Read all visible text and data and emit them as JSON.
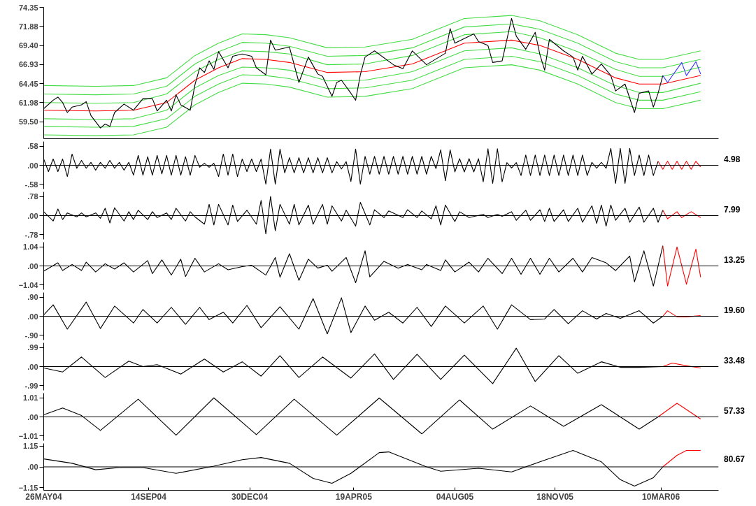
{
  "chart_data": [
    {
      "type": "line",
      "xlim": [
        "2004-05-26",
        "2006-05-10"
      ],
      "ylim": [
        57.3,
        74.35
      ],
      "yticks": [
        74.35,
        71.88,
        {
          "value": 69.4,
          "label": "69.40"
        },
        66.93,
        64.45,
        61.98,
        {
          "value": 59.5,
          "label": "59.50"
        }
      ],
      "tick_labels": "y",
      "series": [
        {
          "color": "#44dd44",
          "x": [
            "2004-05-26",
            "2004-07-20",
            "2004-08-29",
            "2004-10-03",
            "2004-11-02",
            "2004-11-27",
            "2004-12-22",
            "2005-01-16",
            "2005-02-10",
            "2005-03-22",
            "2005-05-01",
            "2005-06-20",
            "2005-08-14",
            "2005-10-03",
            "2005-11-02",
            "2005-12-12",
            "2006-01-21",
            "2006-02-15",
            "2006-03-12",
            "2006-04-21"
          ],
          "values": [
            64.2,
            64.1,
            64.2,
            65.2,
            68.1,
            69.7,
            70.9,
            70.8,
            70.4,
            69.1,
            69.2,
            70.2,
            72.9,
            73.3,
            72.6,
            70.8,
            68.4,
            67.6,
            67.6,
            68.7
          ]
        },
        {
          "color": "#44dd44",
          "x": [
            "2004-05-26",
            "2004-07-20",
            "2004-08-29",
            "2004-10-03",
            "2004-11-02",
            "2004-11-27",
            "2004-12-22",
            "2005-01-16",
            "2005-02-10",
            "2005-03-22",
            "2005-05-01",
            "2005-06-20",
            "2005-08-14",
            "2005-10-03",
            "2005-11-02",
            "2005-12-12",
            "2006-01-21",
            "2006-02-15",
            "2006-03-12",
            "2006-04-21"
          ],
          "values": [
            63.1,
            63.0,
            63.1,
            64.1,
            67.0,
            68.6,
            69.8,
            69.7,
            69.3,
            68.0,
            68.1,
            69.1,
            71.8,
            72.2,
            71.5,
            69.7,
            67.3,
            66.5,
            66.5,
            67.6
          ]
        },
        {
          "color": "#44dd44",
          "x": [
            "2004-05-26",
            "2004-07-20",
            "2004-08-29",
            "2004-10-03",
            "2004-11-02",
            "2004-11-27",
            "2004-12-22",
            "2005-01-16",
            "2005-02-10",
            "2005-03-22",
            "2005-05-01",
            "2005-06-20",
            "2005-08-14",
            "2005-10-03",
            "2005-11-02",
            "2005-12-12",
            "2006-01-21",
            "2006-02-15",
            "2006-03-12",
            "2006-04-21"
          ],
          "values": [
            62.0,
            61.9,
            62.0,
            63.1,
            66.0,
            67.6,
            68.7,
            68.6,
            68.3,
            66.9,
            67.0,
            68.1,
            70.8,
            71.2,
            70.4,
            68.6,
            66.3,
            65.4,
            65.4,
            66.6
          ]
        },
        {
          "color": "#44dd44",
          "x": [
            "2004-05-26",
            "2004-07-20",
            "2004-08-29",
            "2004-10-03",
            "2004-11-02",
            "2004-11-27",
            "2004-12-22",
            "2005-01-16",
            "2005-02-10",
            "2005-03-22",
            "2005-05-01",
            "2005-06-20",
            "2005-08-14",
            "2005-10-03",
            "2005-11-02",
            "2005-12-12",
            "2006-01-21",
            "2006-02-15",
            "2006-03-12",
            "2006-04-21"
          ],
          "values": [
            59.9,
            59.8,
            59.9,
            61.0,
            63.9,
            65.5,
            66.6,
            66.5,
            66.2,
            64.8,
            64.9,
            66.0,
            68.7,
            69.1,
            68.3,
            66.5,
            64.2,
            63.3,
            63.3,
            64.5
          ]
        },
        {
          "color": "#44dd44",
          "x": [
            "2004-05-26",
            "2004-07-20",
            "2004-08-29",
            "2004-10-03",
            "2004-11-02",
            "2004-11-27",
            "2004-12-22",
            "2005-01-16",
            "2005-02-10",
            "2005-03-22",
            "2005-05-01",
            "2005-06-20",
            "2005-08-14",
            "2005-10-03",
            "2005-11-02",
            "2005-12-12",
            "2006-01-21",
            "2006-02-15",
            "2006-03-12",
            "2006-04-21"
          ],
          "values": [
            58.9,
            58.8,
            58.9,
            59.9,
            62.8,
            64.4,
            65.6,
            65.5,
            65.1,
            63.8,
            63.9,
            64.9,
            67.6,
            68.0,
            67.3,
            65.5,
            63.1,
            62.3,
            62.3,
            63.4
          ]
        },
        {
          "color": "#44dd44",
          "x": [
            "2004-05-26",
            "2004-07-20",
            "2004-08-29",
            "2004-10-03",
            "2004-11-02",
            "2004-11-27",
            "2004-12-22",
            "2005-01-16",
            "2005-02-10",
            "2005-03-22",
            "2005-05-01",
            "2005-06-20",
            "2005-08-14",
            "2005-10-03",
            "2005-11-02",
            "2005-12-12",
            "2006-01-21",
            "2006-02-15",
            "2006-03-12",
            "2006-04-21"
          ],
          "values": [
            57.8,
            57.7,
            57.8,
            58.8,
            61.7,
            63.3,
            64.5,
            64.4,
            64.0,
            62.7,
            62.8,
            63.8,
            66.5,
            66.9,
            66.2,
            64.4,
            62.0,
            61.2,
            61.2,
            62.3
          ]
        },
        {
          "color": "#ff0000",
          "x": [
            "2004-05-26",
            "2004-07-20",
            "2004-08-29",
            "2004-10-03",
            "2004-11-02",
            "2004-11-27",
            "2004-12-22",
            "2005-01-16",
            "2005-02-10",
            "2005-03-22",
            "2005-05-01",
            "2005-06-20",
            "2005-08-14",
            "2005-10-03",
            "2005-11-02",
            "2005-12-12",
            "2006-01-21",
            "2006-02-15",
            "2006-03-12",
            "2006-04-21"
          ],
          "values": [
            61.0,
            60.9,
            61.0,
            62.0,
            64.9,
            66.5,
            67.7,
            67.6,
            67.2,
            65.9,
            66.0,
            67.0,
            69.7,
            70.1,
            69.4,
            67.6,
            65.2,
            64.4,
            64.4,
            65.5
          ]
        },
        {
          "color": "#000000",
          "x": [
            "2004-05-26",
            "2004-06-05",
            "2004-06-10",
            "2004-06-15",
            "2004-06-20",
            "2004-06-25",
            "2004-07-05",
            "2004-07-10",
            "2004-07-15",
            "2004-07-25",
            "2004-07-30",
            "2004-08-04",
            "2004-08-09",
            "2004-08-19",
            "2004-08-29",
            "2004-09-08",
            "2004-09-18",
            "2004-09-23",
            "2004-10-03",
            "2004-10-08",
            "2004-10-13",
            "2004-10-18",
            "2004-10-28",
            "2004-11-02",
            "2004-11-07",
            "2004-11-12",
            "2004-11-17",
            "2004-11-22",
            "2004-11-27",
            "2004-12-07",
            "2004-12-12",
            "2004-12-22",
            "2005-01-01",
            "2005-01-06",
            "2005-01-16",
            "2005-01-21",
            "2005-01-26",
            "2005-02-10",
            "2005-02-20",
            "2005-03-02",
            "2005-03-12",
            "2005-03-17",
            "2005-03-27",
            "2005-04-01",
            "2005-04-06",
            "2005-04-16",
            "2005-04-21",
            "2005-04-26",
            "2005-05-01",
            "2005-05-11",
            "2005-05-31",
            "2005-06-10",
            "2005-06-20",
            "2005-07-05",
            "2005-07-25",
            "2005-07-30",
            "2005-08-04",
            "2005-08-24",
            "2005-08-29",
            "2005-09-08",
            "2005-09-13",
            "2005-09-23",
            "2005-10-03",
            "2005-10-08",
            "2005-10-18",
            "2005-10-28",
            "2005-11-02",
            "2005-11-07",
            "2005-11-12",
            "2005-11-27",
            "2005-12-07",
            "2005-12-12",
            "2005-12-17",
            "2005-12-27",
            "2006-01-06",
            "2006-01-16",
            "2006-01-21",
            "2006-01-31",
            "2006-02-10",
            "2006-02-15",
            "2006-02-25",
            "2006-03-02",
            "2006-03-07",
            "2006-03-12"
          ],
          "values": [
            61.2,
            62.3,
            62.7,
            62.0,
            60.7,
            61.4,
            61.7,
            62.1,
            60.3,
            58.7,
            59.2,
            58.9,
            60.7,
            61.8,
            61.0,
            62.5,
            62.5,
            60.9,
            62.3,
            60.9,
            63.0,
            61.7,
            61.0,
            64.3,
            66.5,
            65.9,
            67.4,
            66.3,
            68.6,
            66.5,
            68.0,
            68.3,
            68.0,
            66.5,
            65.6,
            70.1,
            68.8,
            69.2,
            64.6,
            67.9,
            65.7,
            65.4,
            62.8,
            64.6,
            64.9,
            63.2,
            62.3,
            65.6,
            67.9,
            68.7,
            66.9,
            66.4,
            68.7,
            66.9,
            68.4,
            71.6,
            69.7,
            70.9,
            69.9,
            69.4,
            67.2,
            67.4,
            72.9,
            70.6,
            68.9,
            71.1,
            68.2,
            66.2,
            70.2,
            68.7,
            67.9,
            66.2,
            68.0,
            65.7,
            67.0,
            65.5,
            63.5,
            64.4,
            60.7,
            63.2,
            63.5,
            61.4,
            63.2,
            65.5
          ]
        },
        {
          "color": "#3333ff",
          "x": [
            "2006-03-12",
            "2006-03-17",
            "2006-04-01",
            "2006-04-06",
            "2006-04-16",
            "2006-04-21"
          ],
          "values": [
            65.5,
            64.6,
            67.2,
            65.5,
            67.3,
            65.7
          ]
        }
      ]
    },
    {
      "type": "line",
      "xlim": [
        "2004-05-26",
        "2006-05-10"
      ],
      "ylim": [
        -0.72,
        0.72
      ],
      "yticks": [
        {
          "value": 0.58,
          "label": ".58"
        },
        {
          "value": 0,
          "label": ".00"
        },
        {
          "value": -0.58,
          "label": "-.58"
        }
      ],
      "tick_labels": "y",
      "annotations": [
        "4.98"
      ],
      "ref_lines": [
        {
          "axis": "y",
          "value": 0,
          "color": "#000000"
        }
      ],
      "series": [
        {
          "color": "#000000",
          "x": [
            "2004-05-26",
            "2004-05-31",
            "2004-06-05",
            "2004-06-10",
            "2004-06-15",
            "2004-06-20",
            "2004-06-25",
            "2004-06-30",
            "2004-07-05",
            "2004-07-10",
            "2004-07-15",
            "2004-07-20",
            "2004-07-25",
            "2004-07-30",
            "2004-08-04",
            "2004-08-09",
            "2004-08-14",
            "2004-08-19",
            "2004-08-24",
            "2004-08-29",
            "2004-09-03",
            "2004-09-08",
            "2004-09-13",
            "2004-09-18",
            "2004-09-23",
            "2004-09-28",
            "2004-10-03",
            "2004-10-08",
            "2004-10-13",
            "2004-10-18",
            "2004-10-23",
            "2004-10-28",
            "2004-11-02",
            "2004-11-07",
            "2004-11-12",
            "2004-11-17",
            "2004-11-22",
            "2004-11-27",
            "2004-12-02",
            "2004-12-07",
            "2004-12-12",
            "2004-12-17",
            "2004-12-22",
            "2004-12-27",
            "2005-01-01",
            "2005-01-06",
            "2005-01-11",
            "2005-01-16",
            "2005-01-21",
            "2005-01-26",
            "2005-01-31",
            "2005-02-05",
            "2005-02-10",
            "2005-02-15",
            "2005-02-20",
            "2005-02-25",
            "2005-03-02",
            "2005-03-07",
            "2005-03-12",
            "2005-03-17",
            "2005-03-22",
            "2005-03-27",
            "2005-04-01",
            "2005-04-06",
            "2005-04-11",
            "2005-04-16",
            "2005-04-21",
            "2005-04-26",
            "2005-05-01",
            "2005-05-06",
            "2005-05-11",
            "2005-05-16",
            "2005-05-21",
            "2005-05-26",
            "2005-05-31",
            "2005-06-05",
            "2005-06-10",
            "2005-06-15",
            "2005-06-20",
            "2005-06-25",
            "2005-06-30",
            "2005-07-05",
            "2005-07-10",
            "2005-07-15",
            "2005-07-20",
            "2005-07-25",
            "2005-07-30",
            "2005-08-04",
            "2005-08-09",
            "2005-08-14",
            "2005-08-19",
            "2005-08-24",
            "2005-08-29",
            "2005-09-03",
            "2005-09-08",
            "2005-09-13",
            "2005-09-18",
            "2005-09-23",
            "2005-09-28",
            "2005-10-03",
            "2005-10-08",
            "2005-10-13",
            "2005-10-18",
            "2005-10-23",
            "2005-10-28",
            "2005-11-02",
            "2005-11-07",
            "2005-11-12",
            "2005-11-17",
            "2005-11-22",
            "2005-11-27",
            "2005-12-02",
            "2005-12-07",
            "2005-12-12",
            "2005-12-17",
            "2005-12-22",
            "2005-12-27",
            "2006-01-01",
            "2006-01-06",
            "2006-01-11",
            "2006-01-16",
            "2006-01-21",
            "2006-01-26",
            "2006-01-31",
            "2006-02-05",
            "2006-02-10",
            "2006-02-15",
            "2006-02-20",
            "2006-02-25",
            "2006-03-02",
            "2006-03-07"
          ],
          "values": [
            0.19,
            -0.19,
            0.19,
            -0.19,
            0.19,
            -0.34,
            0.34,
            -0.09,
            0.15,
            -0.09,
            0.09,
            -0.15,
            0.09,
            -0.09,
            0.15,
            -0.09,
            0.09,
            -0.15,
            0.09,
            -0.3,
            0.3,
            -0.3,
            0.26,
            -0.3,
            0.3,
            -0.26,
            0.3,
            -0.3,
            0.3,
            -0.3,
            0.26,
            -0.3,
            0.3,
            -0.06,
            0.06,
            -0.06,
            0.06,
            -0.34,
            0.34,
            -0.3,
            0.34,
            -0.34,
            0.19,
            -0.19,
            0.19,
            -0.19,
            0.19,
            -0.57,
            0.49,
            -0.57,
            0.49,
            -0.23,
            0.23,
            -0.23,
            0.23,
            -0.23,
            0.23,
            -0.23,
            0.23,
            -0.23,
            0.23,
            -0.23,
            0.11,
            -0.11,
            0.11,
            -0.49,
            0.49,
            -0.57,
            0.27,
            -0.27,
            0.27,
            -0.27,
            0.27,
            -0.27,
            0.27,
            -0.27,
            0.27,
            -0.27,
            0.27,
            -0.27,
            0.27,
            -0.27,
            0.27,
            -0.1,
            0.47,
            -0.47,
            0.47,
            -0.2,
            0.2,
            -0.2,
            0.2,
            -0.2,
            0.2,
            -0.5,
            0.5,
            -0.55,
            0.5,
            -0.5,
            0.08,
            -0.08,
            0.08,
            -0.31,
            0.31,
            -0.31,
            0.31,
            -0.31,
            0.31,
            -0.31,
            0.31,
            -0.31,
            0.31,
            -0.31,
            0.31,
            -0.31,
            0.31,
            -0.31,
            0.09,
            -0.09,
            0.09,
            -0.09,
            0.51,
            -0.55,
            0.51,
            -0.55,
            0.51,
            -0.31,
            0.31,
            -0.31,
            0.31,
            -0.31,
            0.12
          ]
        },
        {
          "color": "#ff0000",
          "x": [
            "2006-03-07",
            "2006-03-12",
            "2006-03-17",
            "2006-03-22",
            "2006-03-27",
            "2006-04-01",
            "2006-04-06",
            "2006-04-11",
            "2006-04-16",
            "2006-04-21"
          ],
          "values": [
            0.12,
            -0.12,
            0.12,
            -0.12,
            0.12,
            -0.12,
            0.12,
            -0.12,
            0.12,
            -0.05
          ]
        }
      ]
    },
    {
      "type": "line",
      "xlim": [
        "2004-05-26",
        "2006-05-10"
      ],
      "ylim": [
        -0.97,
        0.97
      ],
      "yticks": [
        {
          "value": 0.78,
          "label": ".78"
        },
        {
          "value": 0,
          "label": ".00"
        },
        {
          "value": -0.78,
          "label": "-.78"
        }
      ],
      "tick_labels": "y",
      "annotations": [
        "7.99"
      ],
      "ref_lines": [
        {
          "axis": "y",
          "value": 0,
          "color": "#000000"
        }
      ],
      "series": [
        {
          "color": "#000000",
          "x": [
            "2004-05-26",
            "2004-06-05",
            "2004-06-10",
            "2004-06-15",
            "2004-06-20",
            "2004-06-30",
            "2004-07-05",
            "2004-07-10",
            "2004-07-20",
            "2004-07-25",
            "2004-07-30",
            "2004-08-04",
            "2004-08-09",
            "2004-08-19",
            "2004-08-24",
            "2004-08-29",
            "2004-09-03",
            "2004-09-13",
            "2004-09-18",
            "2004-09-23",
            "2004-10-03",
            "2004-10-08",
            "2004-10-13",
            "2004-10-23",
            "2004-10-28",
            "2004-11-02",
            "2004-11-12",
            "2004-11-17",
            "2004-11-22",
            "2004-11-27",
            "2004-12-07",
            "2004-12-12",
            "2004-12-17",
            "2004-12-27",
            "2005-01-06",
            "2005-01-11",
            "2005-01-16",
            "2005-01-21",
            "2005-01-26",
            "2005-01-31",
            "2005-02-10",
            "2005-02-15",
            "2005-02-20",
            "2005-03-02",
            "2005-03-07",
            "2005-03-17",
            "2005-03-22",
            "2005-03-27",
            "2005-04-06",
            "2005-04-11",
            "2005-04-21",
            "2005-04-26",
            "2005-05-06",
            "2005-05-11",
            "2005-05-21",
            "2005-05-26",
            "2005-06-10",
            "2005-06-15",
            "2005-06-25",
            "2005-06-30",
            "2005-07-10",
            "2005-07-15",
            "2005-07-20",
            "2005-07-25",
            "2005-08-04",
            "2005-08-09",
            "2005-08-19",
            "2005-09-03",
            "2005-09-08",
            "2005-09-18",
            "2005-09-23",
            "2005-10-03",
            "2005-10-08",
            "2005-10-18",
            "2005-10-23",
            "2005-11-02",
            "2005-11-07",
            "2005-11-12",
            "2005-11-17",
            "2005-11-27",
            "2005-12-02",
            "2005-12-12",
            "2005-12-17",
            "2005-12-27",
            "2006-01-01",
            "2006-01-06",
            "2006-01-11",
            "2006-01-16",
            "2006-01-21",
            "2006-01-31",
            "2006-02-05",
            "2006-02-15",
            "2006-02-20",
            "2006-03-02",
            "2006-03-07",
            "2006-03-12"
          ],
          "values": [
            0.16,
            -0.22,
            0.27,
            -0.16,
            0.11,
            -0.05,
            0.11,
            -0.05,
            0.11,
            -0.11,
            0.3,
            -0.3,
            0.32,
            -0.22,
            0.16,
            -0.16,
            0.22,
            -0.16,
            0.16,
            -0.08,
            0.11,
            -0.16,
            0.3,
            -0.22,
            0.16,
            -0.05,
            -0.35,
            0.46,
            -0.38,
            0.46,
            -0.38,
            0.43,
            -0.24,
            0.22,
            -0.35,
            0.62,
            -0.75,
            0.78,
            -0.62,
            0.46,
            -0.35,
            0.46,
            -0.38,
            0.43,
            -0.35,
            0.46,
            -0.35,
            0.4,
            -0.22,
            0.22,
            -0.43,
            0.54,
            -0.38,
            0.24,
            -0.08,
            0.19,
            -0.08,
            0.24,
            -0.08,
            0.19,
            -0.13,
            0.4,
            -0.38,
            0.43,
            -0.24,
            0.16,
            -0.08,
            0.05,
            -0.08,
            0.05,
            -0.03,
            0.16,
            -0.19,
            0.22,
            -0.19,
            0.24,
            -0.24,
            0.3,
            -0.24,
            0.24,
            -0.24,
            0.3,
            -0.27,
            0.4,
            -0.32,
            0.43,
            -0.43,
            0.43,
            -0.19,
            0.3,
            -0.27,
            0.35,
            -0.27,
            0.3,
            -0.27,
            0.22
          ]
        },
        {
          "color": "#ff0000",
          "x": [
            "2006-03-12",
            "2006-03-17",
            "2006-03-27",
            "2006-04-01",
            "2006-04-11",
            "2006-04-21"
          ],
          "values": [
            0.22,
            -0.13,
            0.16,
            -0.08,
            0.16,
            -0.08
          ]
        }
      ]
    },
    {
      "type": "line",
      "xlim": [
        "2004-05-26",
        "2006-05-10"
      ],
      "ylim": [
        -1.3,
        1.3
      ],
      "yticks": [
        1.04,
        {
          "value": 0,
          "label": ".00"
        },
        -1.04
      ],
      "tick_labels": "y",
      "annotations": [
        "13.25"
      ],
      "ref_lines": [
        {
          "axis": "y",
          "value": 0,
          "color": "#000000"
        }
      ],
      "series": [
        {
          "color": "#000000",
          "x": [
            "2004-05-26",
            "2004-06-10",
            "2004-06-15",
            "2004-06-25",
            "2004-07-05",
            "2004-07-10",
            "2004-07-20",
            "2004-07-30",
            "2004-08-09",
            "2004-08-19",
            "2004-08-29",
            "2004-09-13",
            "2004-09-18",
            "2004-09-28",
            "2004-10-08",
            "2004-10-18",
            "2004-10-23",
            "2004-11-02",
            "2004-11-12",
            "2004-11-27",
            "2004-12-07",
            "2004-12-22",
            "2005-01-01",
            "2005-01-16",
            "2005-01-26",
            "2005-01-31",
            "2005-02-10",
            "2005-02-20",
            "2005-03-02",
            "2005-03-12",
            "2005-03-22",
            "2005-03-27",
            "2005-04-11",
            "2005-04-21",
            "2005-05-01",
            "2005-05-06",
            "2005-05-21",
            "2005-06-05",
            "2005-06-15",
            "2005-06-30",
            "2005-07-05",
            "2005-07-20",
            "2005-07-25",
            "2005-08-04",
            "2005-08-19",
            "2005-08-29",
            "2005-09-08",
            "2005-09-23",
            "2005-10-03",
            "2005-10-13",
            "2005-10-23",
            "2005-11-02",
            "2005-11-12",
            "2005-11-22",
            "2005-12-07",
            "2005-12-17",
            "2005-12-27",
            "2006-01-11",
            "2006-01-21",
            "2006-02-05",
            "2006-02-10",
            "2006-02-20",
            "2006-03-02",
            "2006-03-12"
          ],
          "values": [
            -0.29,
            0.17,
            -0.25,
            0.08,
            -0.25,
            0.21,
            -0.33,
            0.12,
            -0.17,
            0.17,
            -0.33,
            0.29,
            -0.42,
            0.33,
            -0.5,
            0.37,
            -0.58,
            0.42,
            -0.33,
            0.12,
            -0.21,
            -0.04,
            0.04,
            -0.5,
            0.46,
            -0.62,
            0.67,
            -0.79,
            0.37,
            -0.12,
            0.04,
            -0.29,
            0.46,
            -0.92,
            0.83,
            -0.6,
            0.25,
            -0.12,
            0.08,
            -0.21,
            0.08,
            -0.25,
            0.33,
            -0.33,
            0.21,
            -0.33,
            0.42,
            -0.42,
            0.42,
            -0.46,
            0.42,
            -0.46,
            0.42,
            -0.33,
            0.42,
            -0.33,
            0.46,
            0.17,
            -0.25,
            0.54,
            -0.87,
            0.83,
            -1.1,
            1.1
          ]
        },
        {
          "color": "#ff0000",
          "x": [
            "2006-03-12",
            "2006-03-17",
            "2006-03-27",
            "2006-04-06",
            "2006-04-16",
            "2006-04-21"
          ],
          "values": [
            1.1,
            -1.1,
            1.04,
            -1.0,
            0.92,
            -0.62
          ]
        }
      ]
    },
    {
      "type": "line",
      "xlim": [
        "2004-05-26",
        "2006-05-10"
      ],
      "ylim": [
        -1.12,
        1.12
      ],
      "yticks": [
        {
          "value": 0.9,
          "label": ".90"
        },
        {
          "value": 0,
          "label": ".00"
        },
        {
          "value": -0.9,
          "label": "-.90"
        }
      ],
      "tick_labels": "y",
      "annotations": [
        "19.60"
      ],
      "ref_lines": [
        {
          "axis": "y",
          "value": 0,
          "color": "#000000"
        }
      ],
      "series": [
        {
          "color": "#000000",
          "x": [
            "2004-05-26",
            "2004-06-05",
            "2004-06-20",
            "2004-07-10",
            "2004-07-25",
            "2004-08-09",
            "2004-08-29",
            "2004-09-08",
            "2004-09-23",
            "2004-10-08",
            "2004-10-23",
            "2004-11-07",
            "2004-11-17",
            "2004-12-02",
            "2004-12-12",
            "2004-12-27",
            "2005-01-11",
            "2005-01-31",
            "2005-02-20",
            "2005-03-07",
            "2005-03-22",
            "2005-04-06",
            "2005-04-16",
            "2005-05-01",
            "2005-05-11",
            "2005-05-26",
            "2005-06-10",
            "2005-06-25",
            "2005-07-10",
            "2005-07-25",
            "2005-08-14",
            "2005-09-03",
            "2005-09-18",
            "2005-10-03",
            "2005-10-23",
            "2005-11-07",
            "2005-11-17",
            "2005-12-02",
            "2005-12-17",
            "2006-01-01",
            "2006-01-11",
            "2006-01-26",
            "2006-02-15",
            "2006-03-02",
            "2006-03-12"
          ],
          "values": [
            0.06,
            0.54,
            -0.61,
            0.67,
            -0.58,
            0.48,
            -0.32,
            0.32,
            -0.32,
            0.42,
            -0.38,
            0.42,
            -0.16,
            0.19,
            -0.32,
            0.51,
            -0.54,
            0.45,
            -0.61,
            0.83,
            -0.83,
            0.87,
            -0.77,
            0.48,
            -0.19,
            0.19,
            -0.32,
            0.42,
            -0.48,
            0.48,
            -0.32,
            0.48,
            -0.61,
            0.54,
            -0.16,
            -0.13,
            0.32,
            -0.35,
            0.26,
            -0.13,
            0.13,
            -0.1,
            0.26,
            -0.32,
            0
          ]
        },
        {
          "color": "#ff0000",
          "x": [
            "2006-03-12",
            "2006-03-17",
            "2006-03-27",
            "2006-04-06",
            "2006-04-21"
          ],
          "values": [
            0,
            0.26,
            -0.03,
            -0.03,
            0.03
          ]
        }
      ]
    },
    {
      "type": "line",
      "xlim": [
        "2004-05-26",
        "2006-05-10"
      ],
      "ylim": [
        -1.24,
        1.24
      ],
      "yticks": [
        {
          "value": 0.99,
          "label": ".99"
        },
        {
          "value": 0,
          "label": ".00"
        },
        {
          "value": -0.99,
          "label": "-.99"
        }
      ],
      "tick_labels": "y",
      "annotations": [
        "33.48"
      ],
      "ref_lines": [
        {
          "axis": "y",
          "value": 0,
          "color": "#000000"
        }
      ],
      "series": [
        {
          "color": "#000000",
          "x": [
            "2004-05-26",
            "2004-06-15",
            "2004-07-05",
            "2004-07-30",
            "2004-08-24",
            "2004-09-08",
            "2004-09-23",
            "2004-10-18",
            "2004-11-12",
            "2004-12-02",
            "2004-12-22",
            "2005-01-11",
            "2005-01-31",
            "2005-02-20",
            "2005-03-17",
            "2005-04-16",
            "2005-05-11",
            "2005-05-31",
            "2005-06-25",
            "2005-07-20",
            "2005-08-14",
            "2005-09-13",
            "2005-10-08",
            "2005-10-28",
            "2005-11-22",
            "2005-12-12",
            "2006-01-06",
            "2006-01-26",
            "2006-02-15",
            "2006-03-12"
          ],
          "values": [
            -0.07,
            -0.28,
            0.5,
            -0.57,
            0.28,
            0,
            0.1,
            -0.39,
            0.39,
            -0.28,
            0.25,
            -0.5,
            0.57,
            -0.57,
            0.5,
            -0.6,
            0.66,
            -0.67,
            0.64,
            -0.67,
            0.6,
            -0.89,
            0.96,
            -0.78,
            0.57,
            -0.35,
            0.25,
            -0.04,
            -0.04,
            0
          ]
        },
        {
          "color": "#ff0000",
          "x": [
            "2006-03-12",
            "2006-03-22",
            "2006-04-06",
            "2006-04-21"
          ],
          "values": [
            0,
            0.18,
            0.04,
            -0.07
          ]
        }
      ]
    },
    {
      "type": "line",
      "xlim": [
        "2004-05-26",
        "2006-05-10"
      ],
      "ylim": [
        -1.26,
        1.26
      ],
      "yticks": [
        1.01,
        {
          "value": 0,
          "label": ".00"
        },
        -1.01
      ],
      "tick_labels": "y",
      "annotations": [
        "57.33"
      ],
      "ref_lines": [
        {
          "axis": "y",
          "value": 0,
          "color": "#000000"
        }
      ],
      "series": [
        {
          "color": "#000000",
          "x": [
            "2004-05-26",
            "2004-06-15",
            "2004-07-05",
            "2004-07-25",
            "2004-09-03",
            "2004-10-13",
            "2004-11-22",
            "2005-01-06",
            "2005-02-15",
            "2005-04-01",
            "2005-05-16",
            "2005-06-30",
            "2005-08-09",
            "2005-09-13",
            "2005-10-23",
            "2005-11-27",
            "2006-01-06",
            "2006-02-15",
            "2006-03-07"
          ],
          "values": [
            0.11,
            0.47,
            0.07,
            -0.72,
            0.94,
            -0.97,
            1.01,
            -0.94,
            0.94,
            -0.97,
            1.0,
            -0.9,
            0.9,
            -0.65,
            0.58,
            -0.5,
            0.65,
            -0.65,
            0
          ]
        },
        {
          "color": "#ff0000",
          "x": [
            "2006-03-07",
            "2006-03-27",
            "2006-04-21"
          ],
          "values": [
            0,
            0.72,
            -0.11
          ]
        }
      ]
    },
    {
      "type": "line",
      "xlim": [
        "2004-05-26",
        "2006-05-10"
      ],
      "ylim": [
        -1.3,
        1.3
      ],
      "yticks": [
        1.15,
        {
          "value": 0,
          "label": ".00"
        },
        -1.15
      ],
      "xticks": [
        {
          "value": "2004-05-26",
          "label": "26MAY04"
        },
        {
          "value": "2004-09-14",
          "label": "14SEP04"
        },
        {
          "value": "2004-12-30",
          "label": "30DEC04"
        },
        {
          "value": "2005-04-19",
          "label": "19APR05"
        },
        {
          "value": "2005-08-04",
          "label": "04AUG05"
        },
        {
          "value": "2005-11-18",
          "label": "18NOV05"
        },
        {
          "value": "2006-03-10",
          "label": "10MAR06"
        }
      ],
      "annotations": [
        "80.67"
      ],
      "ref_lines": [
        {
          "axis": "y",
          "value": 0,
          "color": "#000000"
        }
      ],
      "series": [
        {
          "color": "#000000",
          "x": [
            "2004-05-26",
            "2004-06-25",
            "2004-07-20",
            "2004-08-14",
            "2004-09-08",
            "2004-10-13",
            "2004-11-22",
            "2004-12-22",
            "2005-01-11",
            "2005-02-10",
            "2005-03-07",
            "2005-03-27",
            "2005-04-16",
            "2005-05-16",
            "2005-05-26",
            "2005-07-05",
            "2005-07-20",
            "2005-08-29",
            "2005-10-03",
            "2005-11-02",
            "2005-12-07",
            "2006-01-06",
            "2006-01-26",
            "2006-02-10",
            "2006-03-02",
            "2006-03-12"
          ],
          "values": [
            0.44,
            0.2,
            -0.16,
            -0.04,
            -0.04,
            -0.36,
            0.04,
            0.4,
            0.52,
            0.2,
            -0.64,
            -0.91,
            -0.36,
            0.79,
            0.83,
            0,
            -0.24,
            -0.08,
            -0.28,
            0.28,
            0.91,
            0.28,
            -0.71,
            -1.07,
            -0.6,
            0
          ]
        },
        {
          "color": "#ff0000",
          "x": [
            "2006-03-12",
            "2006-03-27",
            "2006-04-06",
            "2006-04-21"
          ],
          "values": [
            0,
            0.64,
            0.91,
            0.91
          ]
        }
      ]
    }
  ]
}
